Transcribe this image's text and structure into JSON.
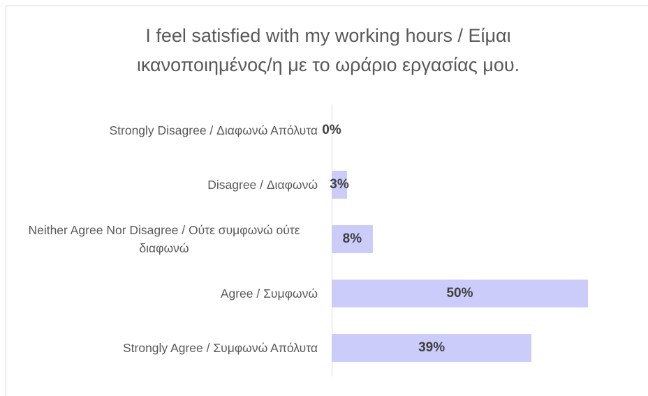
{
  "chart_data": {
    "type": "bar",
    "orientation": "horizontal",
    "title": "I feel satisfied with my working hours / Είμαι ικανοποιημένος/η με το ωράριο εργασίας μου.",
    "categories": [
      "Strongly Disagree / Διαφωνώ Απόλυτα",
      "Disagree / Διαφωνώ",
      "Neither Agree Nor Disagree / Ούτε συμφωνώ ούτε διαφωνώ",
      "Agree / Συμφωνώ",
      "Strongly Agree / Συμφωνώ Απόλυτα"
    ],
    "values": [
      0,
      3,
      8,
      50,
      39
    ],
    "value_labels": [
      "0%",
      "3%",
      "8%",
      "50%",
      "39%"
    ],
    "color": "#ccccfb"
  }
}
